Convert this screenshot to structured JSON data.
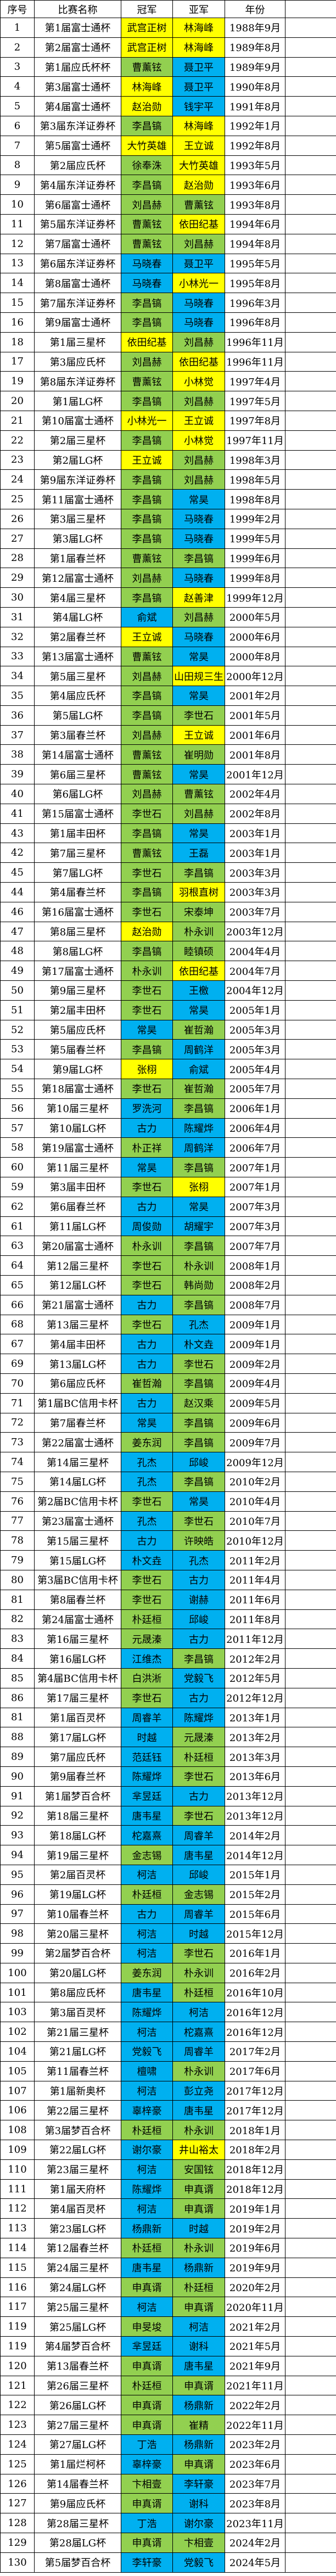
{
  "table": {
    "headers": [
      "序号",
      "比赛名称",
      "冠军",
      "亚军",
      "年份"
    ],
    "colors": {
      "Y": "#ffff00",
      "G": "#92d050",
      "B": "#00b0f0"
    },
    "rows": [
      [
        "1",
        "第1届富士通杯",
        "武宫正树",
        "Y",
        "林海峰",
        "Y",
        "1988年9月"
      ],
      [
        "2",
        "第2届富士通杯",
        "武宫正树",
        "Y",
        "林海峰",
        "Y",
        "1989年8月"
      ],
      [
        "3",
        "第1届应氏杯杯",
        "曹薰铉",
        "G",
        "聂卫平",
        "B",
        "1989年9月"
      ],
      [
        "4",
        "第3届富士通杯",
        "林海峰",
        "Y",
        "聂卫平",
        "B",
        "1990年8月"
      ],
      [
        "5",
        "第4届富士通杯",
        "赵治勋",
        "Y",
        "钱宇平",
        "B",
        "1991年8月"
      ],
      [
        "6",
        "第3届东洋证券杯",
        "李昌镐",
        "G",
        "林海峰",
        "Y",
        "1992年1月"
      ],
      [
        "7",
        "第5届富士通杯",
        "大竹英雄",
        "Y",
        "王立诚",
        "Y",
        "1992年8月"
      ],
      [
        "8",
        "第2届应氏杯",
        "徐奉洙",
        "G",
        "大竹英雄",
        "Y",
        "1993年5月"
      ],
      [
        "9",
        "第4届东洋证券杯",
        "李昌镐",
        "G",
        "赵治勋",
        "Y",
        "1993年6月"
      ],
      [
        "10",
        "第6届富士通杯",
        "刘昌赫",
        "G",
        "曹薰铉",
        "G",
        "1993年8月"
      ],
      [
        "11",
        "第5届东洋证券杯",
        "曹薰铉",
        "G",
        "依田纪基",
        "Y",
        "1994年6月"
      ],
      [
        "12",
        "第7届富士通杯",
        "曹薰铉",
        "G",
        "刘昌赫",
        "G",
        "1994年8月"
      ],
      [
        "13",
        "第6届东洋证券杯",
        "马晓春",
        "B",
        "聂卫平",
        "B",
        "1995年5月"
      ],
      [
        "14",
        "第8届富士通杯",
        "马晓春",
        "B",
        "小林光一",
        "Y",
        "1995年8月"
      ],
      [
        "15",
        "第7届东洋证券杯",
        "李昌镐",
        "G",
        "马晓春",
        "B",
        "1996年3月"
      ],
      [
        "16",
        "第9届富士通杯",
        "李昌镐",
        "G",
        "马晓春",
        "B",
        "1996年8月"
      ],
      [
        "18",
        "第1届三星杯",
        "依田纪基",
        "Y",
        "刘昌赫",
        "G",
        "1996年11月"
      ],
      [
        "17",
        "第3届应氏杯",
        "刘昌赫",
        "G",
        "依田纪基",
        "Y",
        "1996年11月"
      ],
      [
        "19",
        "第8届东洋证券杯",
        "曹薰铉",
        "G",
        "小林觉",
        "Y",
        "1997年4月"
      ],
      [
        "20",
        "第1届LG杯",
        "李昌镐",
        "G",
        "刘昌赫",
        "G",
        "1997年5月"
      ],
      [
        "21",
        "第10届富士通杯",
        "小林光一",
        "Y",
        "王立诚",
        "Y",
        "1997年8月"
      ],
      [
        "22",
        "第2届三星杯",
        "李昌镐",
        "G",
        "小林觉",
        "Y",
        "1997年11月"
      ],
      [
        "23",
        "第2届LG杯",
        "王立诚",
        "Y",
        "刘昌赫",
        "G",
        "1998年3月"
      ],
      [
        "24",
        "第9届东洋证券杯",
        "李昌镐",
        "G",
        "刘昌赫",
        "G",
        "1998年5月"
      ],
      [
        "25",
        "第11届富士通杯",
        "李昌镐",
        "G",
        "常昊",
        "B",
        "1998年8月"
      ],
      [
        "26",
        "第3届三星杯",
        "李昌镐",
        "G",
        "马晓春",
        "B",
        "1999年2月"
      ],
      [
        "27",
        "第3届LG杯",
        "李昌镐",
        "G",
        "马晓春",
        "B",
        "1999年5月"
      ],
      [
        "28",
        "第1届春兰杯",
        "曹薰铉",
        "G",
        "李昌镐",
        "G",
        "1999年6月"
      ],
      [
        "29",
        "第12届富士通杯",
        "刘昌赫",
        "G",
        "马晓春",
        "B",
        "1999年8月"
      ],
      [
        "30",
        "第4届三星杯",
        "李昌镐",
        "G",
        "赵善津",
        "Y",
        "1999年12月"
      ],
      [
        "31",
        "第4届LG杯",
        "俞斌",
        "B",
        "刘昌赫",
        "G",
        "2000年5月"
      ],
      [
        "32",
        "第2届春兰杯",
        "王立诚",
        "Y",
        "马晓春",
        "B",
        "2000年6月"
      ],
      [
        "33",
        "第13届富士通杯",
        "曹薰铉",
        "G",
        "常昊",
        "B",
        "2000年8月"
      ],
      [
        "34",
        "第5届三星杯",
        "刘昌赫",
        "G",
        "山田规三生",
        "Y",
        "2000年12月"
      ],
      [
        "35",
        "第4届应氏杯",
        "李昌镐",
        "G",
        "常昊",
        "B",
        "2001年2月"
      ],
      [
        "36",
        "第5届LG杯",
        "李昌镐",
        "G",
        "李世石",
        "G",
        "2001年5月"
      ],
      [
        "37",
        "第3届春兰杯",
        "刘昌赫",
        "G",
        "王立诚",
        "Y",
        "2001年6月"
      ],
      [
        "38",
        "第14届富士通杯",
        "曹薰铉",
        "G",
        "崔明勋",
        "G",
        "2001年8月"
      ],
      [
        "39",
        "第6届三星杯",
        "曹薰铉",
        "G",
        "常昊",
        "B",
        "2001年12月"
      ],
      [
        "40",
        "第6届LG杯",
        "刘昌赫",
        "G",
        "曹薰铉",
        "G",
        "2002年4月"
      ],
      [
        "41",
        "第15届富士通杯",
        "李世石",
        "G",
        "刘昌赫",
        "G",
        "2002年8月"
      ],
      [
        "43",
        "第1届丰田杯",
        "李昌镐",
        "G",
        "常昊",
        "B",
        "2003年1月"
      ],
      [
        "42",
        "第7届三星杯",
        "曹薰铉",
        "G",
        "王磊",
        "B",
        "2003年1月"
      ],
      [
        "45",
        "第7届LG杯",
        "李世石",
        "G",
        "李昌镐",
        "G",
        "2003年3月"
      ],
      [
        "44",
        "第4届春兰杯",
        "李昌镐",
        "G",
        "羽根直树",
        "Y",
        "2003年3月"
      ],
      [
        "46",
        "第16届富士通杯",
        "李世石",
        "G",
        "宋泰坤",
        "G",
        "2003年7月"
      ],
      [
        "47",
        "第8届三星杯",
        "赵治勋",
        "Y",
        "朴永训",
        "G",
        "2003年12月"
      ],
      [
        "48",
        "第8届LG杯",
        "李昌镐",
        "G",
        "睦镇硕",
        "G",
        "2004年4月"
      ],
      [
        "49",
        "第17届富士通杯",
        "朴永训",
        "G",
        "依田纪基",
        "Y",
        "2004年7月"
      ],
      [
        "50",
        "第9届三星杯",
        "李世石",
        "G",
        "王檄",
        "B",
        "2004年12月"
      ],
      [
        "51",
        "第2届丰田杯",
        "李世石",
        "G",
        "常昊",
        "B",
        "2005年1月"
      ],
      [
        "52",
        "第5届应氏杯",
        "常昊",
        "B",
        "崔哲瀚",
        "G",
        "2005年3月"
      ],
      [
        "53",
        "第5届春兰杯",
        "李昌镐",
        "G",
        "周鹤洋",
        "B",
        "2005年3月"
      ],
      [
        "54",
        "第9届LG杯",
        "张栩",
        "Y",
        "俞斌",
        "B",
        "2005年4月"
      ],
      [
        "55",
        "第18届富士通杯",
        "李世石",
        "G",
        "崔哲瀚",
        "G",
        "2005年7月"
      ],
      [
        "56",
        "第10届三星杯",
        "罗洗河",
        "B",
        "李昌镐",
        "G",
        "2006年1月"
      ],
      [
        "57",
        "第10届LG杯",
        "古力",
        "B",
        "陈耀烨",
        "B",
        "2006年4月"
      ],
      [
        "58",
        "第19届富士通杯",
        "朴正祥",
        "G",
        "周鹤洋",
        "B",
        "2006年7月"
      ],
      [
        "60",
        "第11届三星杯",
        "常昊",
        "B",
        "李昌镐",
        "G",
        "2007年1月"
      ],
      [
        "59",
        "第3届丰田杯",
        "李世石",
        "G",
        "张栩",
        "Y",
        "2007年1月"
      ],
      [
        "62",
        "第6届春兰杯",
        "古力",
        "B",
        "常昊",
        "B",
        "2007年3月"
      ],
      [
        "61",
        "第11届LG杯",
        "周俊勋",
        "B",
        "胡耀宇",
        "B",
        "2007年3月"
      ],
      [
        "63",
        "第20届富士通杯",
        "朴永训",
        "G",
        "李昌镐",
        "G",
        "2007年7月"
      ],
      [
        "64",
        "第12届三星杯",
        "李世石",
        "G",
        "朴永训",
        "G",
        "2008年1月"
      ],
      [
        "65",
        "第12届LG杯",
        "李世石",
        "G",
        "韩尚勋",
        "G",
        "2008年2月"
      ],
      [
        "66",
        "第21届富士通杯",
        "古力",
        "B",
        "李昌镐",
        "G",
        "2008年7月"
      ],
      [
        "68",
        "第13届三星杯",
        "李世石",
        "G",
        "孔杰",
        "B",
        "2009年1月"
      ],
      [
        "67",
        "第4届丰田杯",
        "古力",
        "B",
        "朴文垚",
        "B",
        "2009年1月"
      ],
      [
        "69",
        "第13届LG杯",
        "古力",
        "B",
        "李世石",
        "G",
        "2009年2月"
      ],
      [
        "70",
        "第6届应氏杯",
        "崔哲瀚",
        "G",
        "李昌镐",
        "G",
        "2009年4月"
      ],
      [
        "71",
        "第1届BC信用卡杯",
        "古力",
        "B",
        "赵汉乘",
        "G",
        "2009年5月"
      ],
      [
        "72",
        "第7届春兰杯",
        "常昊",
        "B",
        "李昌镐",
        "G",
        "2009年6月"
      ],
      [
        "73",
        "第22届富士通杯",
        "姜东润",
        "G",
        "李昌镐",
        "G",
        "2009年7月"
      ],
      [
        "74",
        "第14届三星杯",
        "孔杰",
        "B",
        "邱峻",
        "B",
        "2009年12月"
      ],
      [
        "75",
        "第14届LG杯",
        "孔杰",
        "B",
        "李昌镐",
        "G",
        "2010年2月"
      ],
      [
        "76",
        "第2届BC信用卡杯",
        "李世石",
        "G",
        "常昊",
        "B",
        "2010年4月"
      ],
      [
        "77",
        "第23届富士通杯",
        "孔杰",
        "B",
        "李世石",
        "G",
        "2010年7月"
      ],
      [
        "78",
        "第15届三星杯",
        "古力",
        "B",
        "许映皓",
        "G",
        "2010年12月"
      ],
      [
        "79",
        "第15届LG杯",
        "朴文垚",
        "B",
        "孔杰",
        "B",
        "2011年2月"
      ],
      [
        "80",
        "第3届BC信用卡杯",
        "李世石",
        "G",
        "古力",
        "B",
        "2011年4月"
      ],
      [
        "81",
        "第8届春兰杯",
        "李世石",
        "G",
        "谢赫",
        "B",
        "2011年6月"
      ],
      [
        "82",
        "第24届富士通杯",
        "朴廷桓",
        "G",
        "邱峻",
        "B",
        "2011年8月"
      ],
      [
        "83",
        "第16届三星杯",
        "元晟溱",
        "G",
        "古力",
        "B",
        "2011年12月"
      ],
      [
        "84",
        "第16届LG杯",
        "江维杰",
        "B",
        "李昌镐",
        "G",
        "2012年2月"
      ],
      [
        "85",
        "第4届BC信用卡杯",
        "白洪淅",
        "G",
        "党毅飞",
        "B",
        "2012年5月"
      ],
      [
        "86",
        "第17届三星杯",
        "李世石",
        "G",
        "古力",
        "B",
        "2012年12月"
      ],
      [
        "81",
        "第1届百灵杯",
        "周睿羊",
        "B",
        "陈耀烨",
        "B",
        "2013年1月"
      ],
      [
        "88",
        "第17届LG杯",
        "时越",
        "B",
        "元晟溱",
        "G",
        "2013年2月"
      ],
      [
        "89",
        "第7届应氏杯",
        "范廷钰",
        "B",
        "朴廷桓",
        "G",
        "2013年3月"
      ],
      [
        "90",
        "第9届春兰杯",
        "陈耀烨",
        "B",
        "李世石",
        "G",
        "2013年6月"
      ],
      [
        "91",
        "第1届梦百合杯",
        "芈昱廷",
        "B",
        "古力",
        "B",
        "2013年12月"
      ],
      [
        "92",
        "第18届三星杯",
        "唐韦星",
        "B",
        "李世石",
        "G",
        "2013年12月"
      ],
      [
        "93",
        "第18届LG杯",
        "柁嘉熹",
        "B",
        "周睿羊",
        "B",
        "2014年2月"
      ],
      [
        "94",
        "第19届三星杯",
        "金志锡",
        "G",
        "唐韦星",
        "B",
        "2014年12月"
      ],
      [
        "95",
        "第2届百灵杯",
        "柯洁",
        "B",
        "邱峻",
        "B",
        "2015年1月"
      ],
      [
        "96",
        "第19届LG杯",
        "朴廷桓",
        "G",
        "金志锡",
        "G",
        "2015年2月"
      ],
      [
        "97",
        "第10届春兰杯",
        "古力",
        "B",
        "周睿羊",
        "B",
        "2015年6月"
      ],
      [
        "98",
        "第20届三星杯",
        "柯洁",
        "B",
        "时越",
        "B",
        "2015年12月"
      ],
      [
        "99",
        "第2届梦百合杯",
        "柯洁",
        "B",
        "李世石",
        "G",
        "2016年1月"
      ],
      [
        "100",
        "第20届LG杯",
        "姜东润",
        "G",
        "朴永训",
        "G",
        "2016年2月"
      ],
      [
        "101",
        "第8届应氏杯",
        "唐韦星",
        "B",
        "朴廷桓",
        "G",
        "2016年10月"
      ],
      [
        "103",
        "第3届百灵杯",
        "陈耀烨",
        "B",
        "柯洁",
        "B",
        "2016年12月"
      ],
      [
        "102",
        "第21届三星杯",
        "柯洁",
        "B",
        "柁嘉熹",
        "B",
        "2016年12月"
      ],
      [
        "104",
        "第21届LG杯",
        "党毅飞",
        "B",
        "周睿羊",
        "B",
        "2017年2月"
      ],
      [
        "105",
        "第11届春兰杯",
        "檀啸",
        "B",
        "朴永训",
        "G",
        "2017年6月"
      ],
      [
        "107",
        "第1届新奥杯",
        "柯洁",
        "B",
        "彭立尧",
        "B",
        "2017年12月"
      ],
      [
        "106",
        "第22届三星杯",
        "辜梓豪",
        "B",
        "唐韦星",
        "B",
        "2017年12月"
      ],
      [
        "108",
        "第3届梦百合杯",
        "朴廷桓",
        "G",
        "朴永训",
        "G",
        "2018年1月"
      ],
      [
        "109",
        "第22届LG杯",
        "谢尔豪",
        "B",
        "井山裕太",
        "Y",
        "2018年2月"
      ],
      [
        "110",
        "第23届三星杯",
        "柯洁",
        "B",
        "安国铉",
        "G",
        "2018年12月"
      ],
      [
        "111",
        "第1届天府杯",
        "陈耀烨",
        "B",
        "申真谞",
        "G",
        "2018年12月"
      ],
      [
        "112",
        "第4届百灵杯",
        "柯洁",
        "B",
        "申真谞",
        "G",
        "2019年1月"
      ],
      [
        "113",
        "第23届LG杯",
        "杨鼎新",
        "B",
        "时越",
        "B",
        "2019年2月"
      ],
      [
        "114",
        "第12届春兰杯",
        "朴廷桓",
        "G",
        "朴永训",
        "G",
        "2019年6月"
      ],
      [
        "115",
        "第24届三星杯",
        "唐韦星",
        "B",
        "杨鼎新",
        "B",
        "2019年9月"
      ],
      [
        "116",
        "第24届LG杯",
        "申真谞",
        "G",
        "朴廷桓",
        "G",
        "2020年2月"
      ],
      [
        "117",
        "第25届三星杯",
        "柯洁",
        "B",
        "申真谞",
        "G",
        "2020年11月"
      ],
      [
        "119",
        "第25届LG杯",
        "申旻埈",
        "G",
        "柯洁",
        "B",
        "2021年2月"
      ],
      [
        "119",
        "第4届梦百合杯",
        "芈昱廷",
        "B",
        "谢科",
        "B",
        "2021年5月"
      ],
      [
        "120",
        "第13届春兰杯",
        "申真谞",
        "G",
        "唐韦星",
        "B",
        "2021年9月"
      ],
      [
        "121",
        "第26届三星杯",
        "朴廷桓",
        "G",
        "申真谞",
        "G",
        "2021年11月"
      ],
      [
        "122",
        "第26届LG杯",
        "申真谞",
        "G",
        "杨鼎新",
        "B",
        "2022年2月"
      ],
      [
        "123",
        "第27届三星杯",
        "申真谞",
        "G",
        "崔精",
        "G",
        "2022年11月"
      ],
      [
        "124",
        "第27届LG杯",
        "丁浩",
        "B",
        "杨鼎新",
        "B",
        "2023年2月"
      ],
      [
        "125",
        "第1届烂柯杯",
        "辜梓豪",
        "B",
        "申真谞",
        "G",
        "2023年6月"
      ],
      [
        "126",
        "第14届春兰杯",
        "卞相壹",
        "G",
        "李轩豪",
        "B",
        "2023年7月"
      ],
      [
        "127",
        "第9届应氏杯",
        "申真谞",
        "G",
        "谢科",
        "B",
        "2023年8月"
      ],
      [
        "128",
        "第28届三星杯",
        "丁浩",
        "B",
        "谢尔豪",
        "B",
        "2023年11月"
      ],
      [
        "129",
        "第28届LG杯",
        "申真谞",
        "G",
        "卞相壹",
        "G",
        "2024年2月"
      ],
      [
        "130",
        "第5届梦百合杯",
        "李轩豪",
        "B",
        "党毅飞",
        "B",
        "2024年5月"
      ]
    ]
  }
}
